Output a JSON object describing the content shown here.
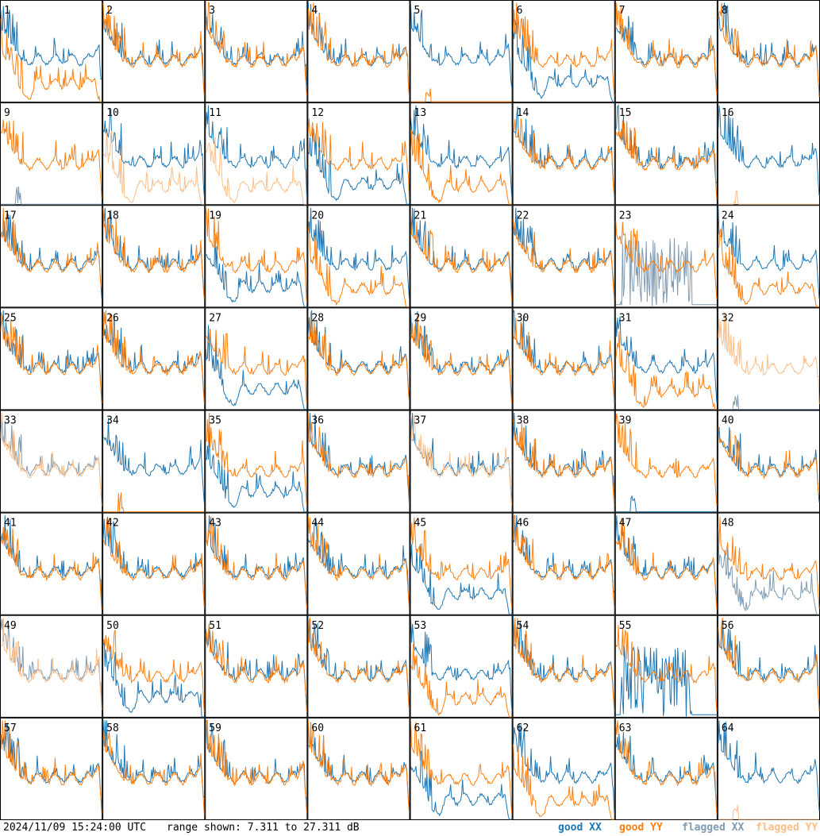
{
  "footer": {
    "timestamp": "2024/11/09 15:24:00 UTC",
    "range_text": "range shown: 7.311 to 27.311 dB"
  },
  "legend": {
    "good_xx": "good XX",
    "good_yy": "good YY",
    "flagged_xx": "flagged XX",
    "flagged_yy": "flagged YY"
  },
  "colors": {
    "good_xx": "#1f77b4",
    "good_yy": "#ff7f0e",
    "flagged_xx": "#7f9bb3",
    "flagged_yy": "#fdbf8a",
    "frame": "#000000"
  },
  "chart_data": {
    "type": "line",
    "layout": "8x8 small multiples",
    "y_range_db": [
      7.311,
      27.311
    ],
    "panels": [
      {
        "id": "1",
        "xx": "good",
        "yy": "good",
        "shape": "yy_low"
      },
      {
        "id": "2",
        "xx": "good",
        "yy": "good",
        "shape": "normal"
      },
      {
        "id": "3",
        "xx": "good",
        "yy": "good",
        "shape": "normal"
      },
      {
        "id": "4",
        "xx": "good",
        "yy": "good",
        "shape": "normal"
      },
      {
        "id": "5",
        "xx": "good",
        "yy": "good",
        "shape": "yy_dead"
      },
      {
        "id": "6",
        "xx": "good",
        "yy": "good",
        "shape": "xx_low"
      },
      {
        "id": "7",
        "xx": "good",
        "yy": "good",
        "shape": "normal"
      },
      {
        "id": "8",
        "xx": "good",
        "yy": "good",
        "shape": "normal"
      },
      {
        "id": "9",
        "xx": "flagged",
        "yy": "good",
        "shape": "xx_dead"
      },
      {
        "id": "10",
        "xx": "good",
        "yy": "flagged",
        "shape": "yy_low"
      },
      {
        "id": "11",
        "xx": "good",
        "yy": "flagged",
        "shape": "yy_low"
      },
      {
        "id": "12",
        "xx": "good",
        "yy": "good",
        "shape": "xx_low"
      },
      {
        "id": "13",
        "xx": "good",
        "yy": "good",
        "shape": "yy_low"
      },
      {
        "id": "14",
        "xx": "good",
        "yy": "good",
        "shape": "normal"
      },
      {
        "id": "15",
        "xx": "good",
        "yy": "good",
        "shape": "normal"
      },
      {
        "id": "16",
        "xx": "good",
        "yy": "flagged",
        "shape": "yy_dead"
      },
      {
        "id": "17",
        "xx": "good",
        "yy": "good",
        "shape": "normal"
      },
      {
        "id": "18",
        "xx": "good",
        "yy": "good",
        "shape": "normal"
      },
      {
        "id": "19",
        "xx": "good",
        "yy": "good",
        "shape": "xx_low"
      },
      {
        "id": "20",
        "xx": "good",
        "yy": "good",
        "shape": "yy_low"
      },
      {
        "id": "21",
        "xx": "good",
        "yy": "good",
        "shape": "normal"
      },
      {
        "id": "22",
        "xx": "good",
        "yy": "good",
        "shape": "normal"
      },
      {
        "id": "23",
        "xx": "flagged",
        "yy": "good",
        "shape": "xx_noisy"
      },
      {
        "id": "24",
        "xx": "good",
        "yy": "good",
        "shape": "yy_low"
      },
      {
        "id": "25",
        "xx": "good",
        "yy": "good",
        "shape": "normal"
      },
      {
        "id": "26",
        "xx": "good",
        "yy": "good",
        "shape": "normal"
      },
      {
        "id": "27",
        "xx": "good",
        "yy": "good",
        "shape": "xx_low"
      },
      {
        "id": "28",
        "xx": "good",
        "yy": "good",
        "shape": "normal"
      },
      {
        "id": "29",
        "xx": "good",
        "yy": "good",
        "shape": "normal"
      },
      {
        "id": "30",
        "xx": "good",
        "yy": "good",
        "shape": "normal"
      },
      {
        "id": "31",
        "xx": "good",
        "yy": "good",
        "shape": "yy_low"
      },
      {
        "id": "32",
        "xx": "flagged",
        "yy": "flagged",
        "shape": "xx_dead"
      },
      {
        "id": "33",
        "xx": "flagged",
        "yy": "flagged",
        "shape": "normal"
      },
      {
        "id": "34",
        "xx": "good",
        "yy": "good",
        "shape": "yy_dead"
      },
      {
        "id": "35",
        "xx": "good",
        "yy": "good",
        "shape": "xx_low"
      },
      {
        "id": "36",
        "xx": "good",
        "yy": "good",
        "shape": "normal"
      },
      {
        "id": "37",
        "xx": "good",
        "yy": "flagged",
        "shape": "normal"
      },
      {
        "id": "38",
        "xx": "good",
        "yy": "good",
        "shape": "normal"
      },
      {
        "id": "39",
        "xx": "good",
        "yy": "good",
        "shape": "xx_dead"
      },
      {
        "id": "40",
        "xx": "good",
        "yy": "good",
        "shape": "normal"
      },
      {
        "id": "41",
        "xx": "good",
        "yy": "good",
        "shape": "normal"
      },
      {
        "id": "42",
        "xx": "good",
        "yy": "good",
        "shape": "normal"
      },
      {
        "id": "43",
        "xx": "good",
        "yy": "good",
        "shape": "normal"
      },
      {
        "id": "44",
        "xx": "good",
        "yy": "good",
        "shape": "normal"
      },
      {
        "id": "45",
        "xx": "good",
        "yy": "good",
        "shape": "xx_low"
      },
      {
        "id": "46",
        "xx": "good",
        "yy": "good",
        "shape": "normal"
      },
      {
        "id": "47",
        "xx": "good",
        "yy": "good",
        "shape": "normal"
      },
      {
        "id": "48",
        "xx": "flagged",
        "yy": "good",
        "shape": "xx_low"
      },
      {
        "id": "49",
        "xx": "flagged",
        "yy": "flagged",
        "shape": "normal"
      },
      {
        "id": "50",
        "xx": "good",
        "yy": "good",
        "shape": "xx_low"
      },
      {
        "id": "51",
        "xx": "good",
        "yy": "good",
        "shape": "normal"
      },
      {
        "id": "52",
        "xx": "good",
        "yy": "good",
        "shape": "normal"
      },
      {
        "id": "53",
        "xx": "good",
        "yy": "good",
        "shape": "yy_low"
      },
      {
        "id": "54",
        "xx": "good",
        "yy": "good",
        "shape": "normal"
      },
      {
        "id": "55",
        "xx": "good",
        "yy": "good",
        "shape": "xx_noisy"
      },
      {
        "id": "56",
        "xx": "good",
        "yy": "good",
        "shape": "normal"
      },
      {
        "id": "57",
        "xx": "good",
        "yy": "good",
        "shape": "normal"
      },
      {
        "id": "58",
        "xx": "good",
        "yy": "good",
        "shape": "normal"
      },
      {
        "id": "59",
        "xx": "good",
        "yy": "good",
        "shape": "normal"
      },
      {
        "id": "60",
        "xx": "good",
        "yy": "good",
        "shape": "normal"
      },
      {
        "id": "61",
        "xx": "good",
        "yy": "good",
        "shape": "xx_low"
      },
      {
        "id": "62",
        "xx": "good",
        "yy": "good",
        "shape": "yy_low"
      },
      {
        "id": "63",
        "xx": "good",
        "yy": "good",
        "shape": "normal"
      },
      {
        "id": "64",
        "xx": "good",
        "yy": "flagged",
        "shape": "yy_dead"
      }
    ]
  }
}
